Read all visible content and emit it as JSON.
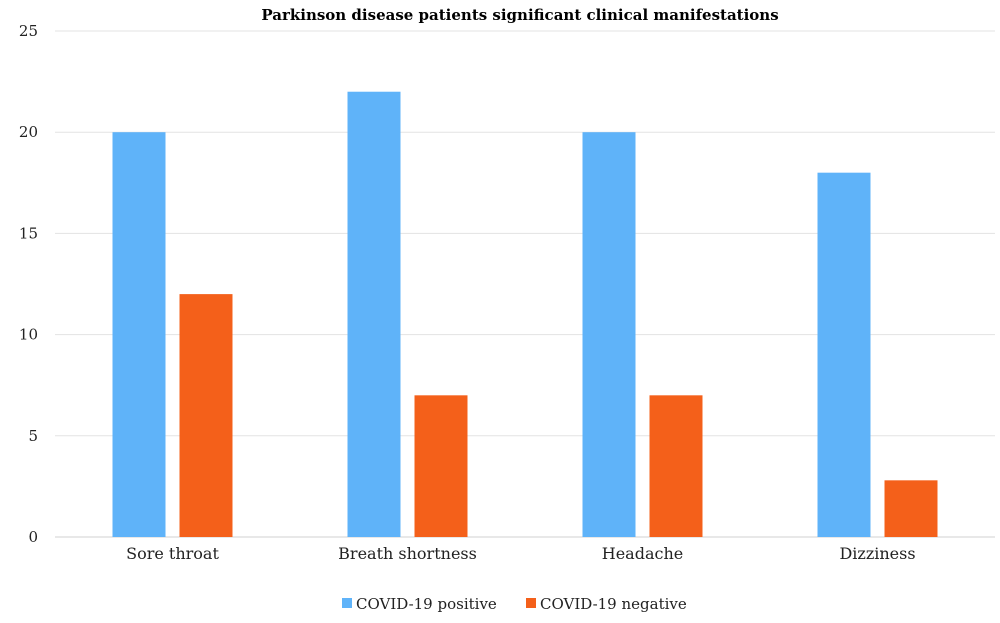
{
  "chart_data": {
    "type": "bar",
    "title": "Parkinson disease patients significant clinical manifestations",
    "xlabel": "",
    "ylabel": "",
    "categories": [
      "Sore throat",
      "Breath shortness",
      "Headache",
      "Dizziness"
    ],
    "series": [
      {
        "name": "COVID-19 positive",
        "color": "#5fb3f9",
        "values": [
          20,
          22,
          20,
          18
        ]
      },
      {
        "name": "COVID-19 negative",
        "color": "#f4601a",
        "values": [
          12,
          7,
          7,
          2.8
        ]
      }
    ],
    "ylim": [
      0,
      25
    ],
    "yticks": [
      0,
      5,
      10,
      15,
      20,
      25
    ],
    "grid": true,
    "legend_position": "bottom"
  }
}
